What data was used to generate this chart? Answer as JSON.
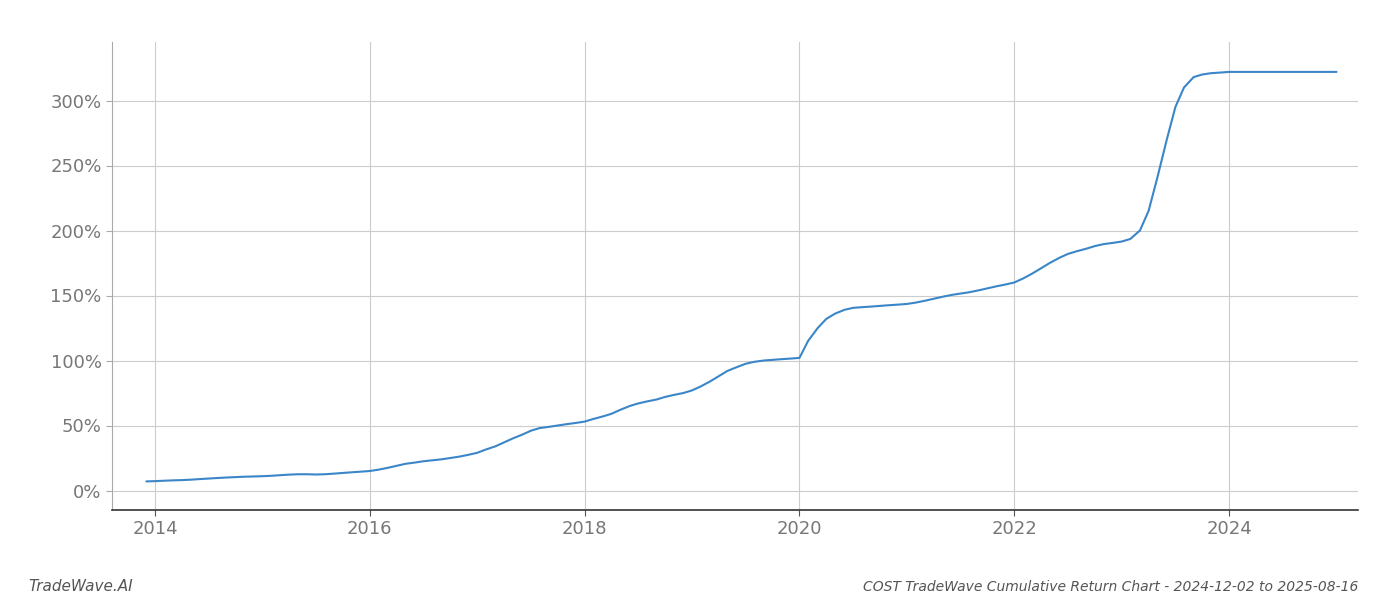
{
  "title": "COST TradeWave Cumulative Return Chart - 2024-12-02 to 2025-08-16",
  "watermark": "TradeWave.AI",
  "line_color": "#3a86c8",
  "background_color": "#ffffff",
  "grid_color": "#cccccc",
  "x_tick_labels": [
    "2014",
    "2016",
    "2018",
    "2020",
    "2022",
    "2024"
  ],
  "y_tick_labels": [
    "0%",
    "50%",
    "100%",
    "150%",
    "200%",
    "250%",
    "300%"
  ],
  "xlim": [
    2013.6,
    2025.2
  ],
  "ylim": [
    -15,
    345
  ],
  "x_values": [
    2013.92,
    2014.0,
    2014.08,
    2014.17,
    2014.25,
    2014.33,
    2014.42,
    2014.5,
    2014.58,
    2014.67,
    2014.75,
    2014.83,
    2014.92,
    2015.0,
    2015.08,
    2015.17,
    2015.25,
    2015.33,
    2015.42,
    2015.5,
    2015.58,
    2015.67,
    2015.75,
    2015.83,
    2015.92,
    2016.0,
    2016.08,
    2016.17,
    2016.25,
    2016.33,
    2016.42,
    2016.5,
    2016.58,
    2016.67,
    2016.75,
    2016.83,
    2016.92,
    2017.0,
    2017.08,
    2017.17,
    2017.25,
    2017.33,
    2017.42,
    2017.5,
    2017.58,
    2017.67,
    2017.75,
    2017.83,
    2017.92,
    2018.0,
    2018.08,
    2018.17,
    2018.25,
    2018.33,
    2018.42,
    2018.5,
    2018.58,
    2018.67,
    2018.75,
    2018.83,
    2018.92,
    2019.0,
    2019.08,
    2019.17,
    2019.25,
    2019.33,
    2019.42,
    2019.5,
    2019.58,
    2019.67,
    2019.75,
    2019.83,
    2019.92,
    2020.0,
    2020.08,
    2020.17,
    2020.25,
    2020.33,
    2020.42,
    2020.5,
    2020.58,
    2020.67,
    2020.75,
    2020.83,
    2020.92,
    2021.0,
    2021.08,
    2021.17,
    2021.25,
    2021.33,
    2021.42,
    2021.5,
    2021.58,
    2021.67,
    2021.75,
    2021.83,
    2021.92,
    2022.0,
    2022.08,
    2022.17,
    2022.25,
    2022.33,
    2022.42,
    2022.5,
    2022.58,
    2022.67,
    2022.75,
    2022.83,
    2022.92,
    2023.0,
    2023.08,
    2023.17,
    2023.25,
    2023.33,
    2023.42,
    2023.5,
    2023.58,
    2023.67,
    2023.75,
    2023.83,
    2023.92,
    2024.0,
    2024.25,
    2024.5,
    2024.75,
    2025.0
  ],
  "y_values": [
    7.0,
    7.2,
    7.5,
    7.8,
    8.0,
    8.3,
    8.8,
    9.2,
    9.6,
    10.0,
    10.3,
    10.6,
    10.8,
    11.0,
    11.3,
    11.8,
    12.2,
    12.5,
    12.5,
    12.3,
    12.5,
    13.0,
    13.5,
    14.0,
    14.5,
    15.0,
    16.0,
    17.5,
    19.0,
    20.5,
    21.5,
    22.5,
    23.2,
    24.0,
    25.0,
    26.0,
    27.5,
    29.0,
    31.5,
    34.0,
    37.0,
    40.0,
    43.0,
    46.0,
    48.0,
    49.0,
    50.0,
    51.0,
    52.0,
    53.0,
    55.0,
    57.0,
    59.0,
    62.0,
    65.0,
    67.0,
    68.5,
    70.0,
    72.0,
    73.5,
    75.0,
    77.0,
    80.0,
    84.0,
    88.0,
    92.0,
    95.0,
    97.5,
    99.0,
    100.0,
    100.5,
    101.0,
    101.5,
    102.0,
    115.0,
    125.0,
    132.0,
    136.0,
    139.0,
    140.5,
    141.0,
    141.5,
    142.0,
    142.5,
    143.0,
    143.5,
    144.5,
    146.0,
    147.5,
    149.0,
    150.5,
    151.5,
    152.5,
    154.0,
    155.5,
    157.0,
    158.5,
    160.0,
    163.0,
    167.0,
    171.0,
    175.0,
    179.0,
    182.0,
    184.0,
    186.0,
    188.0,
    189.5,
    190.5,
    191.5,
    193.5,
    200.0,
    215.0,
    240.0,
    270.0,
    295.0,
    310.0,
    318.0,
    320.0,
    321.0,
    321.5,
    322.0,
    322.0,
    322.0,
    322.0,
    322.0
  ],
  "line_width": 1.5,
  "title_fontsize": 10,
  "watermark_fontsize": 11,
  "tick_fontsize": 13,
  "tick_color": "#777777"
}
